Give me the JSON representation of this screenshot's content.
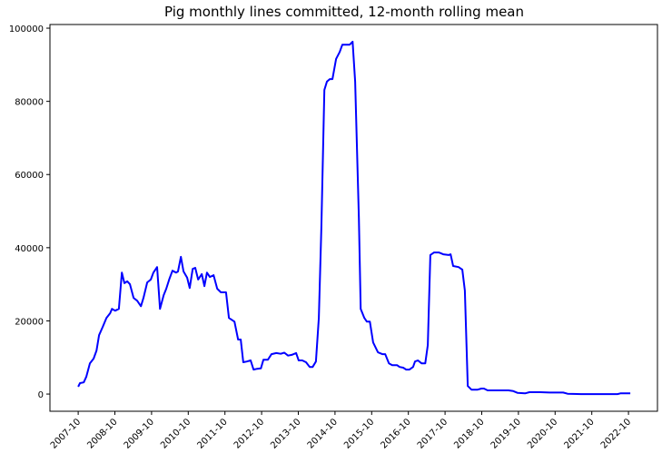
{
  "chart_data": {
    "type": "line",
    "title": "Pig monthly lines committed, 12-month rolling mean",
    "xlabel": "",
    "ylabel": "",
    "xlim": [
      2006.98,
      2023.54
    ],
    "ylim": [
      -4700,
      101000
    ],
    "grid": false,
    "line_color": "#0000ff",
    "yticks": [
      0,
      20000,
      40000,
      60000,
      80000,
      100000
    ],
    "ytick_labels": [
      "0",
      "20000",
      "40000",
      "60000",
      "80000",
      "100000"
    ],
    "xticks": [
      2007.75,
      2008.75,
      2009.75,
      2010.75,
      2011.75,
      2012.75,
      2013.75,
      2014.75,
      2015.75,
      2016.75,
      2017.75,
      2018.75,
      2019.75,
      2020.75,
      2021.75,
      2022.75
    ],
    "xtick_labels": [
      "2007-10",
      "2008-10",
      "2009-10",
      "2010-10",
      "2011-10",
      "2012-10",
      "2013-10",
      "2014-10",
      "2015-10",
      "2016-10",
      "2017-10",
      "2018-10",
      "2019-10",
      "2020-10",
      "2021-10",
      "2022-10"
    ],
    "series": [
      {
        "name": "Pig",
        "x": [
          2007.75,
          2007.8,
          2007.9,
          2007.97,
          2008.07,
          2008.17,
          2008.25,
          2008.32,
          2008.42,
          2008.52,
          2008.62,
          2008.67,
          2008.76,
          2008.86,
          2008.94,
          2009.01,
          2009.09,
          2009.16,
          2009.26,
          2009.36,
          2009.46,
          2009.53,
          2009.63,
          2009.73,
          2009.8,
          2009.9,
          2009.98,
          2010.08,
          2010.15,
          2010.23,
          2010.32,
          2010.42,
          2010.47,
          2010.55,
          2010.62,
          2010.72,
          2010.79,
          2010.87,
          2010.94,
          2011.02,
          2011.12,
          2011.19,
          2011.26,
          2011.34,
          2011.44,
          2011.54,
          2011.64,
          2011.78,
          2011.86,
          2012.01,
          2012.11,
          2012.18,
          2012.25,
          2012.35,
          2012.45,
          2012.53,
          2012.63,
          2012.73,
          2012.8,
          2012.92,
          2013.02,
          2013.15,
          2013.27,
          2013.37,
          2013.47,
          2013.57,
          2013.69,
          2013.76,
          2013.86,
          2013.96,
          2014.06,
          2014.14,
          2014.23,
          2014.31,
          2014.38,
          2014.46,
          2014.53,
          2014.61,
          2014.68,
          2014.78,
          2014.88,
          2014.95,
          2015.05,
          2015.15,
          2015.23,
          2015.3,
          2015.4,
          2015.45,
          2015.55,
          2015.62,
          2015.7,
          2015.79,
          2015.92,
          2016.04,
          2016.12,
          2016.22,
          2016.31,
          2016.44,
          2016.51,
          2016.61,
          2016.69,
          2016.78,
          2016.88,
          2016.93,
          2017.01,
          2017.11,
          2017.21,
          2017.28,
          2017.35,
          2017.45,
          2017.58,
          2017.7,
          2017.85,
          2017.9,
          2017.97,
          2018.12,
          2018.22,
          2018.29,
          2018.37,
          2018.47,
          2018.64,
          2018.74,
          2018.81,
          2018.91,
          2019.24,
          2019.48,
          2019.61,
          2019.73,
          2019.93,
          2020.05,
          2020.35,
          2020.6,
          2020.97,
          2021.09,
          2021.46,
          2022.45,
          2022.53,
          2022.8
        ],
        "y": [
          2000,
          3000,
          3200,
          4700,
          8400,
          9700,
          11900,
          16100,
          18400,
          20800,
          22100,
          23300,
          22800,
          23300,
          33200,
          30300,
          30800,
          30000,
          26300,
          25500,
          24000,
          26300,
          30500,
          31300,
          33200,
          34700,
          23300,
          27000,
          28800,
          31300,
          33700,
          33200,
          33500,
          37500,
          33500,
          31800,
          29000,
          34200,
          34500,
          31300,
          32800,
          29500,
          33200,
          32000,
          32500,
          28800,
          27800,
          27800,
          20800,
          19800,
          14900,
          14900,
          8700,
          8900,
          9200,
          6700,
          6900,
          7000,
          9400,
          9400,
          10900,
          11200,
          11000,
          11300,
          10500,
          10700,
          11200,
          9200,
          9200,
          8700,
          7400,
          7400,
          8900,
          20800,
          45600,
          83100,
          85400,
          86100,
          86100,
          91600,
          93500,
          95500,
          95500,
          95500,
          96300,
          85400,
          48100,
          23300,
          20800,
          19800,
          19800,
          14100,
          11400,
          10900,
          10900,
          8400,
          7900,
          7900,
          7400,
          7200,
          6700,
          6700,
          7400,
          8900,
          9200,
          8400,
          8400,
          13400,
          38000,
          38700,
          38700,
          38200,
          38000,
          38200,
          35000,
          34700,
          34000,
          28300,
          2200,
          1200,
          1200,
          1500,
          1500,
          1000,
          1000,
          1000,
          800,
          300,
          200,
          500,
          500,
          400,
          400,
          100,
          0,
          0,
          200,
          200
        ]
      }
    ]
  }
}
